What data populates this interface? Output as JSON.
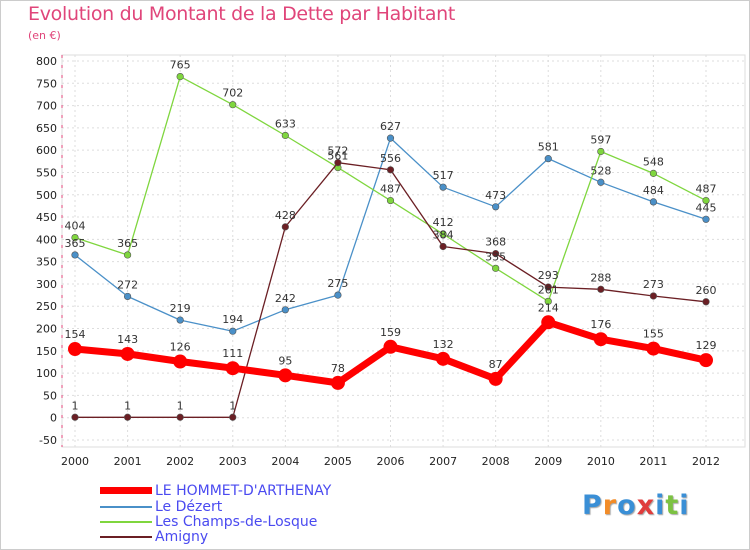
{
  "chart_data": {
    "type": "line",
    "title": "Evolution du Montant de la Dette par Habitant",
    "subtitle": "(en €)",
    "x": [
      "2000",
      "2001",
      "2002",
      "2003",
      "2004",
      "2005",
      "2006",
      "2007",
      "2008",
      "2009",
      "2010",
      "2011",
      "2012"
    ],
    "ylim": [
      -50,
      800
    ],
    "yticks": [
      -50,
      0,
      50,
      100,
      150,
      200,
      250,
      300,
      350,
      400,
      450,
      500,
      550,
      600,
      650,
      700,
      750,
      800
    ],
    "grid": true,
    "legend_position": "bottom-left",
    "series": [
      {
        "name": "LE HOMMET-D'ARTHENAY",
        "color": "#ff0000",
        "values": [
          154,
          143,
          126,
          111,
          95,
          78,
          159,
          132,
          87,
          214,
          176,
          155,
          129
        ]
      },
      {
        "name": "Le Dézert",
        "color": "#4a90c8",
        "values": [
          365,
          272,
          219,
          194,
          242,
          275,
          627,
          517,
          473,
          581,
          528,
          484,
          445
        ]
      },
      {
        "name": "Les Champs-de-Losque",
        "color": "#7fd63e",
        "values": [
          404,
          365,
          765,
          702,
          633,
          561,
          487,
          412,
          335,
          261,
          597,
          548,
          487
        ]
      },
      {
        "name": "Amigny",
        "color": "#6b1f24",
        "values": [
          1,
          1,
          1,
          1,
          428,
          572,
          556,
          384,
          368,
          293,
          288,
          273,
          260
        ]
      }
    ]
  },
  "logo": {
    "letters": [
      "P",
      "r",
      "o",
      "x",
      "i",
      "t",
      "i"
    ],
    "colors": [
      "#3a8fd6",
      "#f28c28",
      "#3a8fd6",
      "#e03c3c",
      "#3a8fd6",
      "#7cc242",
      "#3a8fd6"
    ]
  }
}
